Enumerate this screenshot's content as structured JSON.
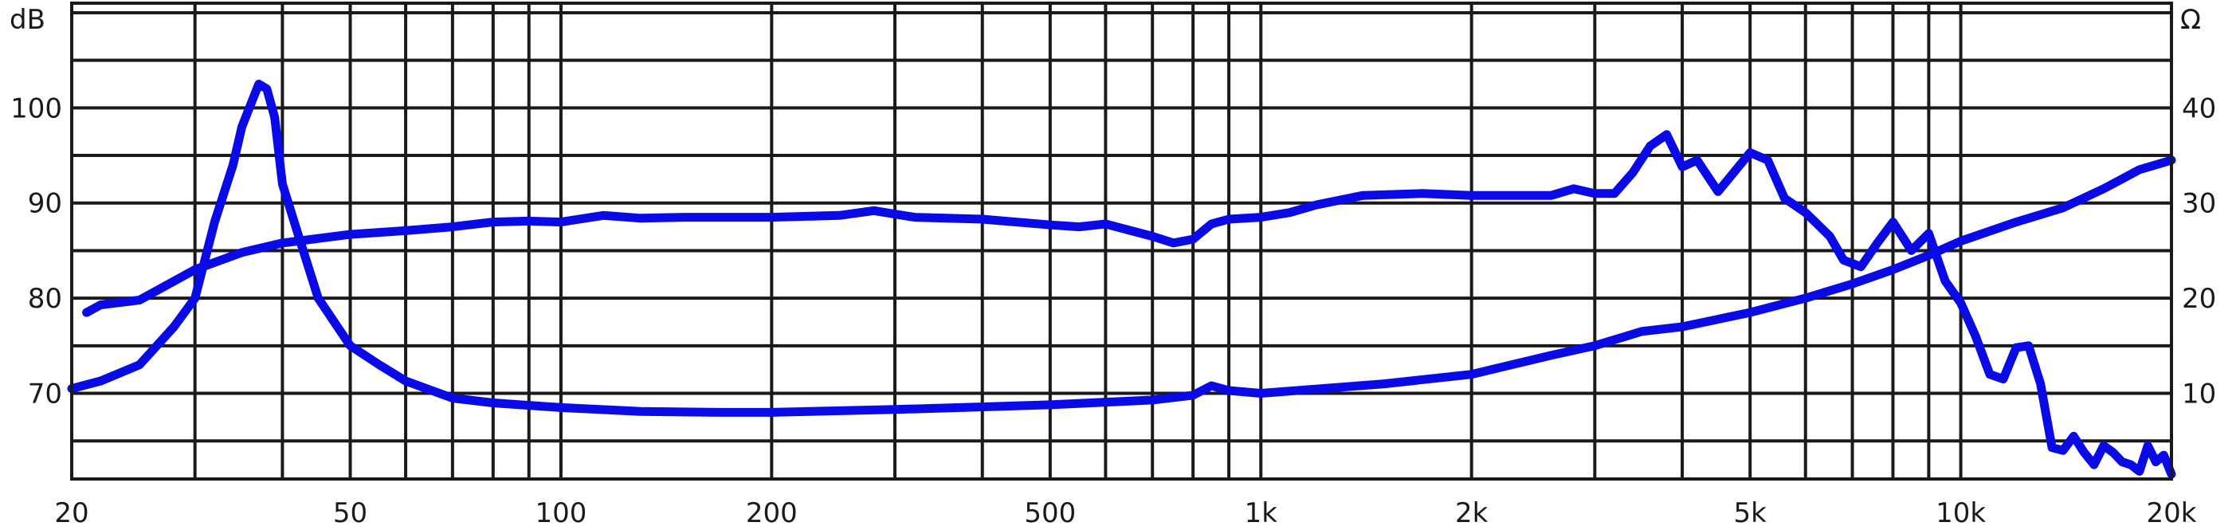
{
  "chart_data": {
    "type": "line",
    "title": "",
    "y_unit_left": "dB",
    "y_unit_right": "Ω",
    "x_scale": "log",
    "xlim": [
      20,
      20000
    ],
    "ylim_left": [
      61,
      111
    ],
    "ylim_right": [
      1,
      51
    ],
    "grid": true,
    "x_ticks": [
      {
        "value": 20,
        "label": "20"
      },
      {
        "value": 50,
        "label": "50"
      },
      {
        "value": 100,
        "label": "100"
      },
      {
        "value": 200,
        "label": "200"
      },
      {
        "value": 500,
        "label": "500"
      },
      {
        "value": 1000,
        "label": "1k"
      },
      {
        "value": 2000,
        "label": "2k"
      },
      {
        "value": 5000,
        "label": "5k"
      },
      {
        "value": 10000,
        "label": "10k"
      },
      {
        "value": 20000,
        "label": "20k"
      }
    ],
    "y_ticks_left": [
      {
        "value": 70,
        "label": "70"
      },
      {
        "value": 80,
        "label": "80"
      },
      {
        "value": 90,
        "label": "90"
      },
      {
        "value": 100,
        "label": "100"
      }
    ],
    "y_ticks_right": [
      {
        "value": 10,
        "label": "10"
      },
      {
        "value": 20,
        "label": "20"
      },
      {
        "value": 30,
        "label": "30"
      },
      {
        "value": 40,
        "label": "40"
      }
    ],
    "series": [
      {
        "axis": "left",
        "color": "#0a0ae6",
        "points": [
          [
            21,
            78.5
          ],
          [
            22,
            79.3
          ],
          [
            25,
            79.8
          ],
          [
            30,
            83
          ],
          [
            35,
            84.8
          ],
          [
            40,
            85.8
          ],
          [
            50,
            86.7
          ],
          [
            60,
            87.1
          ],
          [
            70,
            87.5
          ],
          [
            80,
            88.0
          ],
          [
            90,
            88.1
          ],
          [
            100,
            88.0
          ],
          [
            115,
            88.7
          ],
          [
            130,
            88.4
          ],
          [
            150,
            88.5
          ],
          [
            200,
            88.5
          ],
          [
            250,
            88.7
          ],
          [
            280,
            89.2
          ],
          [
            320,
            88.5
          ],
          [
            400,
            88.3
          ],
          [
            500,
            87.7
          ],
          [
            550,
            87.5
          ],
          [
            600,
            87.8
          ],
          [
            700,
            86.5
          ],
          [
            750,
            85.8
          ],
          [
            800,
            86.2
          ],
          [
            850,
            87.8
          ],
          [
            900,
            88.3
          ],
          [
            1000,
            88.5
          ],
          [
            1100,
            89.0
          ],
          [
            1200,
            89.8
          ],
          [
            1400,
            90.8
          ],
          [
            1700,
            91.0
          ],
          [
            2000,
            90.8
          ],
          [
            2600,
            90.8
          ],
          [
            2800,
            91.5
          ],
          [
            3000,
            91.0
          ],
          [
            3200,
            91.0
          ],
          [
            3400,
            93.2
          ],
          [
            3600,
            96.0
          ],
          [
            3800,
            97.2
          ],
          [
            4000,
            93.8
          ],
          [
            4200,
            94.5
          ],
          [
            4500,
            91.2
          ],
          [
            5000,
            95.3
          ],
          [
            5300,
            94.5
          ],
          [
            5600,
            90.5
          ],
          [
            6000,
            89.0
          ],
          [
            6500,
            86.5
          ],
          [
            6800,
            84.0
          ],
          [
            7200,
            83.3
          ],
          [
            7600,
            85.8
          ],
          [
            8000,
            88.0
          ],
          [
            8500,
            85.0
          ],
          [
            9000,
            86.8
          ],
          [
            9500,
            81.8
          ],
          [
            10000,
            79.5
          ],
          [
            10500,
            76.0
          ],
          [
            11000,
            72.0
          ],
          [
            11500,
            71.5
          ],
          [
            12000,
            74.8
          ],
          [
            12500,
            75.0
          ],
          [
            13000,
            71.0
          ],
          [
            13500,
            64.3
          ],
          [
            14000,
            64.0
          ],
          [
            14500,
            65.5
          ],
          [
            15000,
            63.8
          ],
          [
            15500,
            62.5
          ],
          [
            16000,
            64.5
          ],
          [
            16500,
            63.8
          ],
          [
            17000,
            62.8
          ],
          [
            17500,
            62.5
          ],
          [
            18000,
            61.8
          ],
          [
            18500,
            64.5
          ],
          [
            19000,
            62.8
          ],
          [
            19500,
            63.5
          ],
          [
            20000,
            61.5
          ]
        ]
      },
      {
        "axis": "right",
        "color": "#0a0ae6",
        "points": [
          [
            20,
            10.5
          ],
          [
            22,
            11.3
          ],
          [
            25,
            13.0
          ],
          [
            28,
            17.0
          ],
          [
            30,
            20.0
          ],
          [
            32,
            28.0
          ],
          [
            34,
            34.0
          ],
          [
            35,
            38.0
          ],
          [
            37,
            42.5
          ],
          [
            38,
            42.0
          ],
          [
            39,
            39.0
          ],
          [
            40,
            32.0
          ],
          [
            42,
            27.0
          ],
          [
            45,
            20.0
          ],
          [
            50,
            15.0
          ],
          [
            55,
            13.0
          ],
          [
            60,
            11.3
          ],
          [
            70,
            9.5
          ],
          [
            80,
            9.0
          ],
          [
            100,
            8.5
          ],
          [
            130,
            8.1
          ],
          [
            170,
            8.0
          ],
          [
            200,
            8.0
          ],
          [
            300,
            8.3
          ],
          [
            500,
            8.8
          ],
          [
            700,
            9.3
          ],
          [
            800,
            9.8
          ],
          [
            850,
            10.8
          ],
          [
            900,
            10.3
          ],
          [
            1000,
            10.0
          ],
          [
            1500,
            11.0
          ],
          [
            2000,
            12.0
          ],
          [
            2600,
            14.0
          ],
          [
            3000,
            15.0
          ],
          [
            3500,
            16.5
          ],
          [
            4000,
            17.0
          ],
          [
            5000,
            18.5
          ],
          [
            6000,
            20.0
          ],
          [
            7000,
            21.5
          ],
          [
            8000,
            23.0
          ],
          [
            9000,
            24.5
          ],
          [
            10000,
            26.0
          ],
          [
            12000,
            28.0
          ],
          [
            14000,
            29.5
          ],
          [
            16000,
            31.5
          ],
          [
            18000,
            33.5
          ],
          [
            20000,
            34.5
          ]
        ]
      }
    ]
  }
}
